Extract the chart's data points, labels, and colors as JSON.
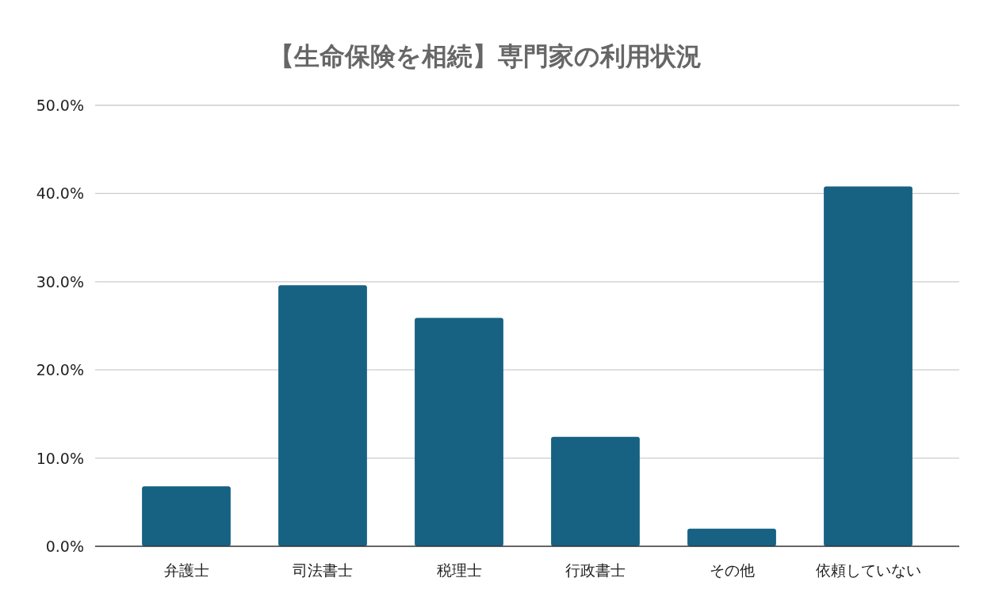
{
  "chart_data": {
    "type": "bar",
    "title": "【生命保険を相続】専門家の利用状況",
    "categories": [
      "弁護士",
      "司法書士",
      "税理士",
      "行政書士",
      "その他",
      "依頼していない"
    ],
    "values": [
      6.8,
      29.6,
      25.9,
      12.4,
      2.0,
      40.8
    ],
    "color": "#176183",
    "ylim": [
      0,
      50
    ],
    "yticks": [
      {
        "value": 0,
        "label": "0.0%"
      },
      {
        "value": 10,
        "label": "10.0%"
      },
      {
        "value": 20,
        "label": "20.0%"
      },
      {
        "value": 30,
        "label": "30.0%"
      },
      {
        "value": 40,
        "label": "40.0%"
      },
      {
        "value": 50,
        "label": "50.0%"
      }
    ],
    "grid": "y"
  }
}
